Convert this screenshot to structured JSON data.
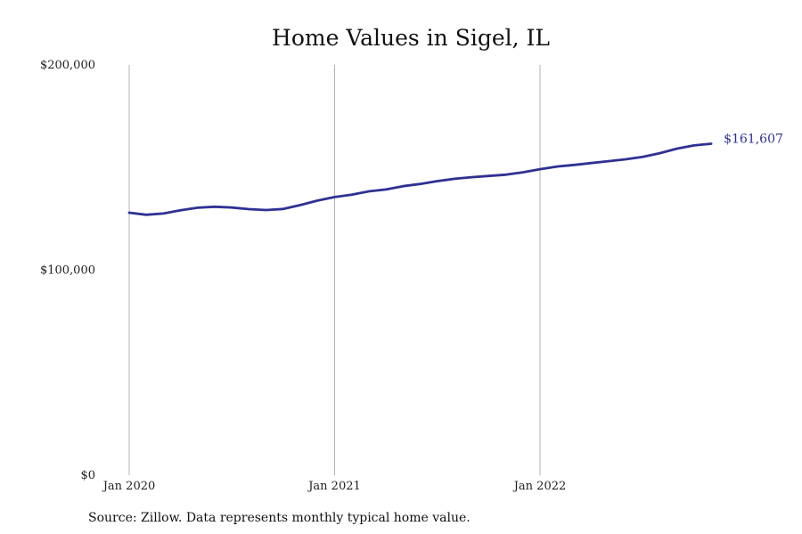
{
  "chart_data": {
    "type": "line",
    "title": "Home Values in Sigel, IL",
    "xlabel": "",
    "ylabel": "",
    "x_ticks": [
      {
        "label": "Jan 2020",
        "date": "2020-01"
      },
      {
        "label": "Jan 2021",
        "date": "2021-01"
      },
      {
        "label": "Jan 2022",
        "date": "2022-01"
      }
    ],
    "y_ticks": [
      {
        "label": "$0",
        "value": 0
      },
      {
        "label": "$100,000",
        "value": 100000
      },
      {
        "label": "$200,000",
        "value": 200000
      }
    ],
    "ylim": [
      0,
      200000
    ],
    "xlim": [
      "2020-01",
      "2022-12"
    ],
    "grid": {
      "vertical": true,
      "horizontal": false
    },
    "series": [
      {
        "color": "#2e3192",
        "end_label": "$161,607",
        "points": [
          {
            "date": "2020-01",
            "value": 128000
          },
          {
            "date": "2020-02",
            "value": 127000
          },
          {
            "date": "2020-03",
            "value": 127600
          },
          {
            "date": "2020-04",
            "value": 129200
          },
          {
            "date": "2020-05",
            "value": 130400
          },
          {
            "date": "2020-06",
            "value": 130900
          },
          {
            "date": "2020-07",
            "value": 130500
          },
          {
            "date": "2020-08",
            "value": 129700
          },
          {
            "date": "2020-09",
            "value": 129300
          },
          {
            "date": "2020-10",
            "value": 129800
          },
          {
            "date": "2020-11",
            "value": 131700
          },
          {
            "date": "2020-12",
            "value": 133900
          },
          {
            "date": "2021-01",
            "value": 135600
          },
          {
            "date": "2021-02",
            "value": 136800
          },
          {
            "date": "2021-03",
            "value": 138400
          },
          {
            "date": "2021-04",
            "value": 139300
          },
          {
            "date": "2021-05",
            "value": 140900
          },
          {
            "date": "2021-06",
            "value": 142000
          },
          {
            "date": "2021-07",
            "value": 143400
          },
          {
            "date": "2021-08",
            "value": 144500
          },
          {
            "date": "2021-09",
            "value": 145300
          },
          {
            "date": "2021-10",
            "value": 145900
          },
          {
            "date": "2021-11",
            "value": 146500
          },
          {
            "date": "2021-12",
            "value": 147700
          },
          {
            "date": "2022-01",
            "value": 149200
          },
          {
            "date": "2022-02",
            "value": 150500
          },
          {
            "date": "2022-03",
            "value": 151300
          },
          {
            "date": "2022-04",
            "value": 152200
          },
          {
            "date": "2022-05",
            "value": 153100
          },
          {
            "date": "2022-06",
            "value": 154000
          },
          {
            "date": "2022-07",
            "value": 155200
          },
          {
            "date": "2022-08",
            "value": 157000
          },
          {
            "date": "2022-09",
            "value": 159200
          },
          {
            "date": "2022-10",
            "value": 160800
          },
          {
            "date": "2022-11",
            "value": 161607
          }
        ]
      }
    ]
  },
  "footer": {
    "source": "Source: Zillow. Data represents monthly typical home value."
  },
  "colors": {
    "line": "#2e3192",
    "grid": "#b3b3b3",
    "text": "#111111"
  }
}
